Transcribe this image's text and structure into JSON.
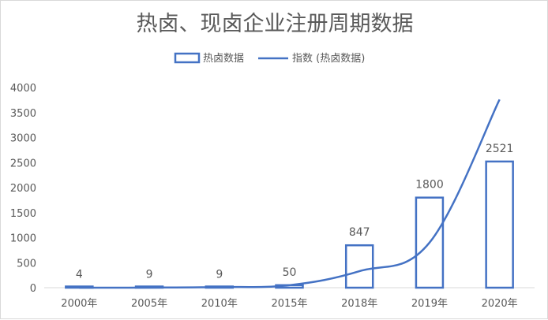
{
  "chart_data": {
    "type": "bar",
    "title": "热卤、现卤企业注册周期数据",
    "categories": [
      "2000年",
      "2005年",
      "2010年",
      "2015年",
      "2018年",
      "2019年",
      "2020年"
    ],
    "series": [
      {
        "name": "热卤数据",
        "type": "bar",
        "values": [
          4,
          9,
          9,
          50,
          847,
          1800,
          2521
        ],
        "data_labels": [
          "4",
          "9",
          "9",
          "50",
          "847",
          "1800",
          "2521"
        ]
      },
      {
        "name": "指数 (热卤数据)",
        "type": "line",
        "values": [
          0,
          2,
          12,
          50,
          330,
          900,
          3760
        ]
      }
    ],
    "y_ticks": [
      "0",
      "500",
      "1000",
      "1500",
      "2000",
      "2500",
      "3000",
      "3500",
      "4000"
    ],
    "ylim": [
      0,
      4000
    ],
    "grid": false,
    "legend": "top-center",
    "colors": {
      "series": "#4472c4",
      "text": "#595959",
      "axis": "#d9d9d9"
    }
  }
}
